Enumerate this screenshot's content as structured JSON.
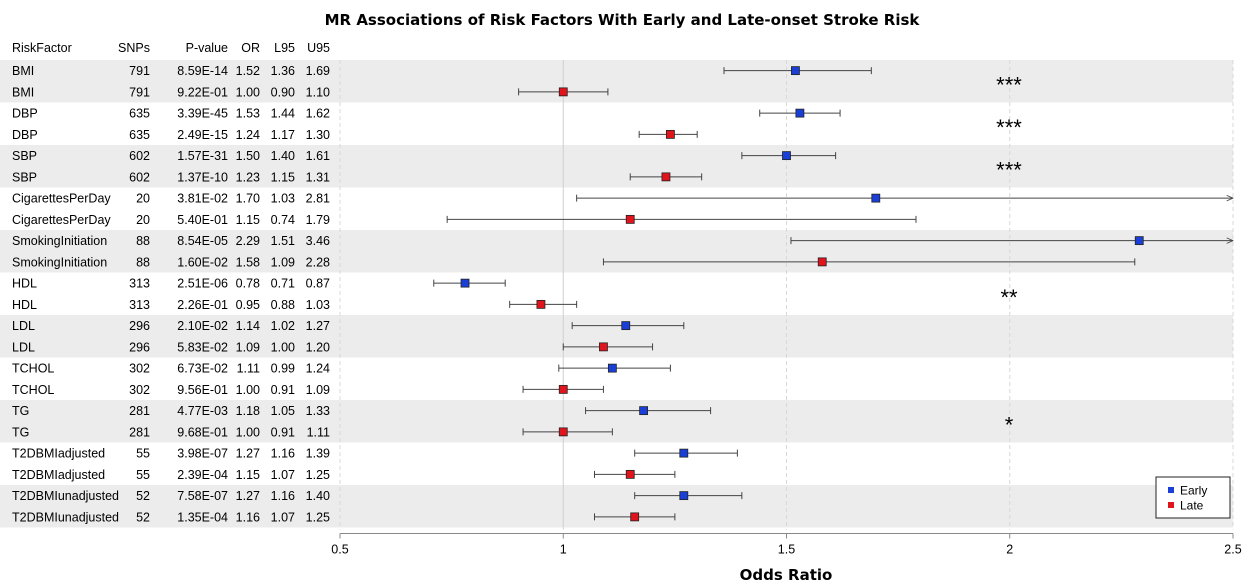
{
  "chart_data": {
    "type": "forest",
    "title": "MR Associations of Risk Factors With Early and Late-onset Stroke Risk",
    "xlabel": "Odds Ratio",
    "xlim": [
      0.5,
      2.5
    ],
    "xticks": [
      "0.5",
      "1",
      "1.5",
      "2",
      "2.5"
    ],
    "reference_line": 1,
    "columns": [
      "RiskFactor",
      "SNPs",
      "P-value",
      "OR",
      "L95",
      "U95"
    ],
    "colors": {
      "Early": "#1a3fd6",
      "Late": "#e0141c"
    },
    "legend": {
      "position": "bottom-right",
      "entries": [
        "Early",
        "Late"
      ]
    },
    "rows": [
      {
        "RiskFactor": "BMI",
        "SNPs": "791",
        "P-value": "8.59E-14",
        "OR": "1.52",
        "L95": "1.36",
        "U95": "1.69",
        "group": "Early",
        "or": 1.52,
        "l95": 1.36,
        "u95": 1.69
      },
      {
        "RiskFactor": "BMI",
        "SNPs": "791",
        "P-value": "9.22E-01",
        "OR": "1.00",
        "L95": "0.90",
        "U95": "1.10",
        "group": "Late",
        "or": 1.0,
        "l95": 0.9,
        "u95": 1.1
      },
      {
        "RiskFactor": "DBP",
        "SNPs": "635",
        "P-value": "3.39E-45",
        "OR": "1.53",
        "L95": "1.44",
        "U95": "1.62",
        "group": "Early",
        "or": 1.53,
        "l95": 1.44,
        "u95": 1.62
      },
      {
        "RiskFactor": "DBP",
        "SNPs": "635",
        "P-value": "2.49E-15",
        "OR": "1.24",
        "L95": "1.17",
        "U95": "1.30",
        "group": "Late",
        "or": 1.24,
        "l95": 1.17,
        "u95": 1.3
      },
      {
        "RiskFactor": "SBP",
        "SNPs": "602",
        "P-value": "1.57E-31",
        "OR": "1.50",
        "L95": "1.40",
        "U95": "1.61",
        "group": "Early",
        "or": 1.5,
        "l95": 1.4,
        "u95": 1.61
      },
      {
        "RiskFactor": "SBP",
        "SNPs": "602",
        "P-value": "1.37E-10",
        "OR": "1.23",
        "L95": "1.15",
        "U95": "1.31",
        "group": "Late",
        "or": 1.23,
        "l95": 1.15,
        "u95": 1.31
      },
      {
        "RiskFactor": "CigarettesPerDay",
        "SNPs": "20",
        "P-value": "3.81E-02",
        "OR": "1.70",
        "L95": "1.03",
        "U95": "2.81",
        "group": "Early",
        "or": 1.7,
        "l95": 1.03,
        "u95": 2.81
      },
      {
        "RiskFactor": "CigarettesPerDay",
        "SNPs": "20",
        "P-value": "5.40E-01",
        "OR": "1.15",
        "L95": "0.74",
        "U95": "1.79",
        "group": "Late",
        "or": 1.15,
        "l95": 0.74,
        "u95": 1.79
      },
      {
        "RiskFactor": "SmokingInitiation",
        "SNPs": "88",
        "P-value": "8.54E-05",
        "OR": "2.29",
        "L95": "1.51",
        "U95": "3.46",
        "group": "Early",
        "or": 2.29,
        "l95": 1.51,
        "u95": 3.46
      },
      {
        "RiskFactor": "SmokingInitiation",
        "SNPs": "88",
        "P-value": "1.60E-02",
        "OR": "1.58",
        "L95": "1.09",
        "U95": "2.28",
        "group": "Late",
        "or": 1.58,
        "l95": 1.09,
        "u95": 2.28
      },
      {
        "RiskFactor": "HDL",
        "SNPs": "313",
        "P-value": "2.51E-06",
        "OR": "0.78",
        "L95": "0.71",
        "U95": "0.87",
        "group": "Early",
        "or": 0.78,
        "l95": 0.71,
        "u95": 0.87
      },
      {
        "RiskFactor": "HDL",
        "SNPs": "313",
        "P-value": "2.26E-01",
        "OR": "0.95",
        "L95": "0.88",
        "U95": "1.03",
        "group": "Late",
        "or": 0.95,
        "l95": 0.88,
        "u95": 1.03
      },
      {
        "RiskFactor": "LDL",
        "SNPs": "296",
        "P-value": "2.10E-02",
        "OR": "1.14",
        "L95": "1.02",
        "U95": "1.27",
        "group": "Early",
        "or": 1.14,
        "l95": 1.02,
        "u95": 1.27
      },
      {
        "RiskFactor": "LDL",
        "SNPs": "296",
        "P-value": "5.83E-02",
        "OR": "1.09",
        "L95": "1.00",
        "U95": "1.20",
        "group": "Late",
        "or": 1.09,
        "l95": 1.0,
        "u95": 1.2
      },
      {
        "RiskFactor": "TCHOL",
        "SNPs": "302",
        "P-value": "6.73E-02",
        "OR": "1.11",
        "L95": "0.99",
        "U95": "1.24",
        "group": "Early",
        "or": 1.11,
        "l95": 0.99,
        "u95": 1.24
      },
      {
        "RiskFactor": "TCHOL",
        "SNPs": "302",
        "P-value": "9.56E-01",
        "OR": "1.00",
        "L95": "0.91",
        "U95": "1.09",
        "group": "Late",
        "or": 1.0,
        "l95": 0.91,
        "u95": 1.09
      },
      {
        "RiskFactor": "TG",
        "SNPs": "281",
        "P-value": "4.77E-03",
        "OR": "1.18",
        "L95": "1.05",
        "U95": "1.33",
        "group": "Early",
        "or": 1.18,
        "l95": 1.05,
        "u95": 1.33
      },
      {
        "RiskFactor": "TG",
        "SNPs": "281",
        "P-value": "9.68E-01",
        "OR": "1.00",
        "L95": "0.91",
        "U95": "1.11",
        "group": "Late",
        "or": 1.0,
        "l95": 0.91,
        "u95": 1.11
      },
      {
        "RiskFactor": "T2DBMIadjusted",
        "SNPs": "55",
        "P-value": "3.98E-07",
        "OR": "1.27",
        "L95": "1.16",
        "U95": "1.39",
        "group": "Early",
        "or": 1.27,
        "l95": 1.16,
        "u95": 1.39
      },
      {
        "RiskFactor": "T2DBMIadjusted",
        "SNPs": "55",
        "P-value": "2.39E-04",
        "OR": "1.15",
        "L95": "1.07",
        "U95": "1.25",
        "group": "Late",
        "or": 1.15,
        "l95": 1.07,
        "u95": 1.25
      },
      {
        "RiskFactor": "T2DBMIunadjusted",
        "SNPs": "52",
        "P-value": "7.58E-07",
        "OR": "1.27",
        "L95": "1.16",
        "U95": "1.40",
        "group": "Early",
        "or": 1.27,
        "l95": 1.16,
        "u95": 1.4
      },
      {
        "RiskFactor": "T2DBMIunadjusted",
        "SNPs": "52",
        "P-value": "1.35E-04",
        "OR": "1.16",
        "L95": "1.07",
        "U95": "1.25",
        "group": "Late",
        "or": 1.16,
        "l95": 1.07,
        "u95": 1.25
      }
    ],
    "significance": [
      {
        "pair": 0,
        "label": "***"
      },
      {
        "pair": 1,
        "label": "***"
      },
      {
        "pair": 2,
        "label": "***"
      },
      {
        "pair": 5,
        "label": "**"
      },
      {
        "pair": 8,
        "label": "*"
      }
    ]
  }
}
